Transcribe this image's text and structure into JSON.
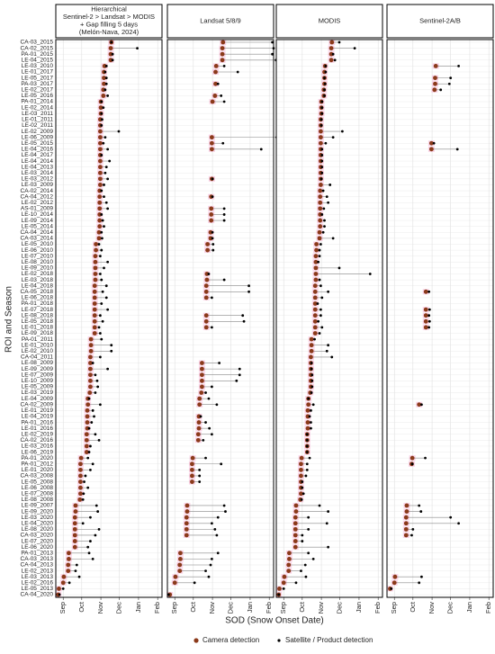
{
  "chart_data": {
    "type": "dumbbell",
    "xlabel": "SOD (Snow Onset Date)",
    "ylabel": "ROI and Season",
    "xlim": [
      -12,
      160
    ],
    "xticks": [
      {
        "value": 0,
        "label": "Sep"
      },
      {
        "value": 30,
        "label": "Oct"
      },
      {
        "value": 61,
        "label": "Nov"
      },
      {
        "value": 91,
        "label": "Dec"
      },
      {
        "value": 122,
        "label": "Jan"
      },
      {
        "value": 153,
        "label": "Feb"
      }
    ],
    "grid": true,
    "legend": "bottom",
    "categories": [
      "CA-03_2015",
      "CA-02_2015",
      "PA-01_2015",
      "LE-04_2015",
      "LE-03_2010",
      "LE-01_2017",
      "LE-05_2017",
      "PA-03_2017",
      "LE-02_2017",
      "LE-05_2016",
      "PA-01_2014",
      "LE-02_2014",
      "LE-03_2011",
      "LE-01_2011",
      "LE-02_2011",
      "LE-02_2009",
      "LE-06_2009",
      "LE-05_2015",
      "LE-04_2016",
      "LE-04_2017",
      "LE-04_2014",
      "LE-04_2013",
      "LE-03_2014",
      "LE-03_2012",
      "LE-03_2009",
      "CA-02_2014",
      "CA-04_2012",
      "LE-02_2012",
      "AS-01_2009",
      "LE-10_2014",
      "LE-09_2014",
      "LE-05_2014",
      "CA-04_2014",
      "CA-03_2014",
      "LE-05_2010",
      "LE-06_2010",
      "LE-07_2010",
      "LE-08_2010",
      "LE-09_2010",
      "LE-02_2018",
      "LE-03_2018",
      "LE-04_2018",
      "CA-05_2018",
      "LE-06_2018",
      "PA-01_2018",
      "LE-07_2018",
      "LE-08_2018",
      "LE-05_2018",
      "LE-01_2018",
      "LE-09_2018",
      "PA-01_2011",
      "LE-01_2010",
      "LE-02_2010",
      "CA-04_2011",
      "LE-08_2009",
      "LE-09_2009",
      "LE-07_2009",
      "LE-10_2009",
      "LE-05_2009",
      "LE-03_2019",
      "LE-04_2009",
      "CA-02_2009",
      "LE-01_2019",
      "LE-04_2019",
      "PA-01_2016",
      "LE-01_2016",
      "LE-02_2019",
      "CA-02_2016",
      "LE-03_2016",
      "LE-06_2019",
      "PA-01_2020",
      "PA-01_2012",
      "LE-01_2020",
      "CA-03_2008",
      "LE-05_2008",
      "LE-06_2008",
      "LE-07_2008",
      "LE-08_2008",
      "LE-09_2007",
      "LE-09_2020",
      "LE-03_2020",
      "LE-04_2020",
      "LE-08_2020",
      "CA-03_2020",
      "LE-07_2020",
      "LE-06_2020",
      "PA-01_2013",
      "CA-03_2013",
      "CA-04_2013",
      "LE-02_2013",
      "LE-03_2013",
      "LE-02_2016",
      "LE-05_2013",
      "CA-04_2020"
    ],
    "camera": {
      "name": "Camera detection",
      "color": "#8b3a1a",
      "values": [
        78,
        77,
        77,
        77,
        67,
        66,
        66,
        66,
        65,
        65,
        61,
        61,
        61,
        60,
        60,
        60,
        60,
        60,
        60,
        60,
        60,
        60,
        60,
        60,
        60,
        59,
        59,
        59,
        59,
        59,
        59,
        59,
        58,
        58,
        53,
        53,
        52,
        52,
        52,
        52,
        52,
        51,
        51,
        51,
        51,
        51,
        51,
        51,
        51,
        51,
        45,
        45,
        45,
        44,
        44,
        44,
        44,
        44,
        44,
        43,
        40,
        40,
        39,
        39,
        39,
        39,
        38,
        38,
        38,
        38,
        29,
        28,
        28,
        28,
        28,
        28,
        28,
        27,
        20,
        20,
        19,
        19,
        19,
        19,
        19,
        19,
        9,
        9,
        8,
        8,
        1,
        0,
        -7,
        -8
      ]
    },
    "satellite": {
      "name": "Satellite / Product detection",
      "color": "#000000"
    },
    "facets": [
      {
        "title": [
          "Hierarchical",
          "Sentinel-2 > Landsat > MODIS",
          "+ Gap filling 5 days",
          "(Melón-Nava, 2024)"
        ],
        "values": [
          78,
          120,
          80,
          80,
          70,
          68,
          70,
          70,
          68,
          72,
          62,
          65,
          62,
          63,
          62,
          90,
          68,
          65,
          72,
          62,
          75,
          70,
          68,
          72,
          66,
          62,
          66,
          70,
          72,
          62,
          64,
          66,
          62,
          63,
          58,
          62,
          60,
          72,
          66,
          60,
          62,
          70,
          64,
          70,
          62,
          72,
          60,
          64,
          58,
          60,
          62,
          78,
          78,
          60,
          48,
          72,
          52,
          55,
          56,
          52,
          42,
          60,
          48,
          50,
          46,
          42,
          52,
          58,
          44,
          42,
          40,
          48,
          44,
          36,
          34,
          40,
          33,
          32,
          54,
          56,
          44,
          32,
          58,
          52,
          44,
          40,
          42,
          48,
          22,
          20,
          26,
          10,
          0,
          -6
        ]
      },
      {
        "title": [
          "Landsat 5/8/9"
        ],
        "values": [
          158,
          160,
          158,
          164,
          80,
          102,
          null,
          70,
          null,
          75,
          80,
          null,
          null,
          null,
          null,
          null,
          165,
          78,
          140,
          null,
          null,
          null,
          null,
          61,
          null,
          null,
          61,
          null,
          80,
          80,
          80,
          null,
          61,
          61,
          62,
          62,
          null,
          null,
          null,
          55,
          80,
          120,
          120,
          60,
          null,
          null,
          110,
          112,
          60,
          null,
          null,
          null,
          null,
          null,
          72,
          105,
          105,
          100,
          60,
          50,
          55,
          68,
          null,
          42,
          50,
          56,
          60,
          46,
          null,
          null,
          50,
          75,
          40,
          40,
          40,
          null,
          null,
          null,
          80,
          82,
          70,
          60,
          65,
          68,
          null,
          null,
          70,
          60,
          58,
          50,
          55,
          32,
          null,
          -10
        ]
      },
      {
        "title": [
          "MODIS"
        ],
        "values": [
          90,
          115,
          80,
          83,
          68,
          68,
          66,
          67,
          66,
          66,
          62,
          62,
          62,
          61,
          61,
          95,
          80,
          68,
          62,
          62,
          62,
          62,
          62,
          61,
          75,
          64,
          70,
          72,
          65,
          62,
          66,
          66,
          64,
          80,
          60,
          58,
          58,
          56,
          90,
          140,
          58,
          60,
          72,
          62,
          55,
          60,
          60,
          56,
          62,
          58,
          50,
          72,
          70,
          78,
          45,
          45,
          46,
          46,
          46,
          45,
          40,
          48,
          44,
          42,
          44,
          44,
          38,
          38,
          38,
          38,
          42,
          38,
          38,
          36,
          30,
          30,
          32,
          29,
          58,
          72,
          40,
          70,
          40,
          30,
          30,
          72,
          40,
          48,
          35,
          28,
          36,
          20,
          0,
          -8
        ]
      },
      {
        "title": [
          "Sentinel-2A/B"
        ],
        "values": [
          null,
          null,
          null,
          null,
          104,
          null,
          91,
          89,
          75,
          null,
          null,
          null,
          null,
          null,
          null,
          null,
          null,
          64,
          102,
          null,
          null,
          null,
          null,
          null,
          null,
          null,
          null,
          null,
          null,
          null,
          null,
          null,
          null,
          null,
          null,
          null,
          null,
          null,
          null,
          null,
          null,
          null,
          56,
          null,
          null,
          57,
          56,
          57,
          56,
          null,
          null,
          null,
          null,
          null,
          null,
          null,
          null,
          null,
          null,
          null,
          null,
          44,
          null,
          null,
          null,
          null,
          null,
          null,
          null,
          null,
          50,
          29,
          null,
          null,
          null,
          null,
          null,
          null,
          40,
          43,
          91,
          104,
          30,
          28,
          null,
          null,
          null,
          null,
          null,
          null,
          44,
          40,
          -5,
          null
        ]
      }
    ]
  }
}
